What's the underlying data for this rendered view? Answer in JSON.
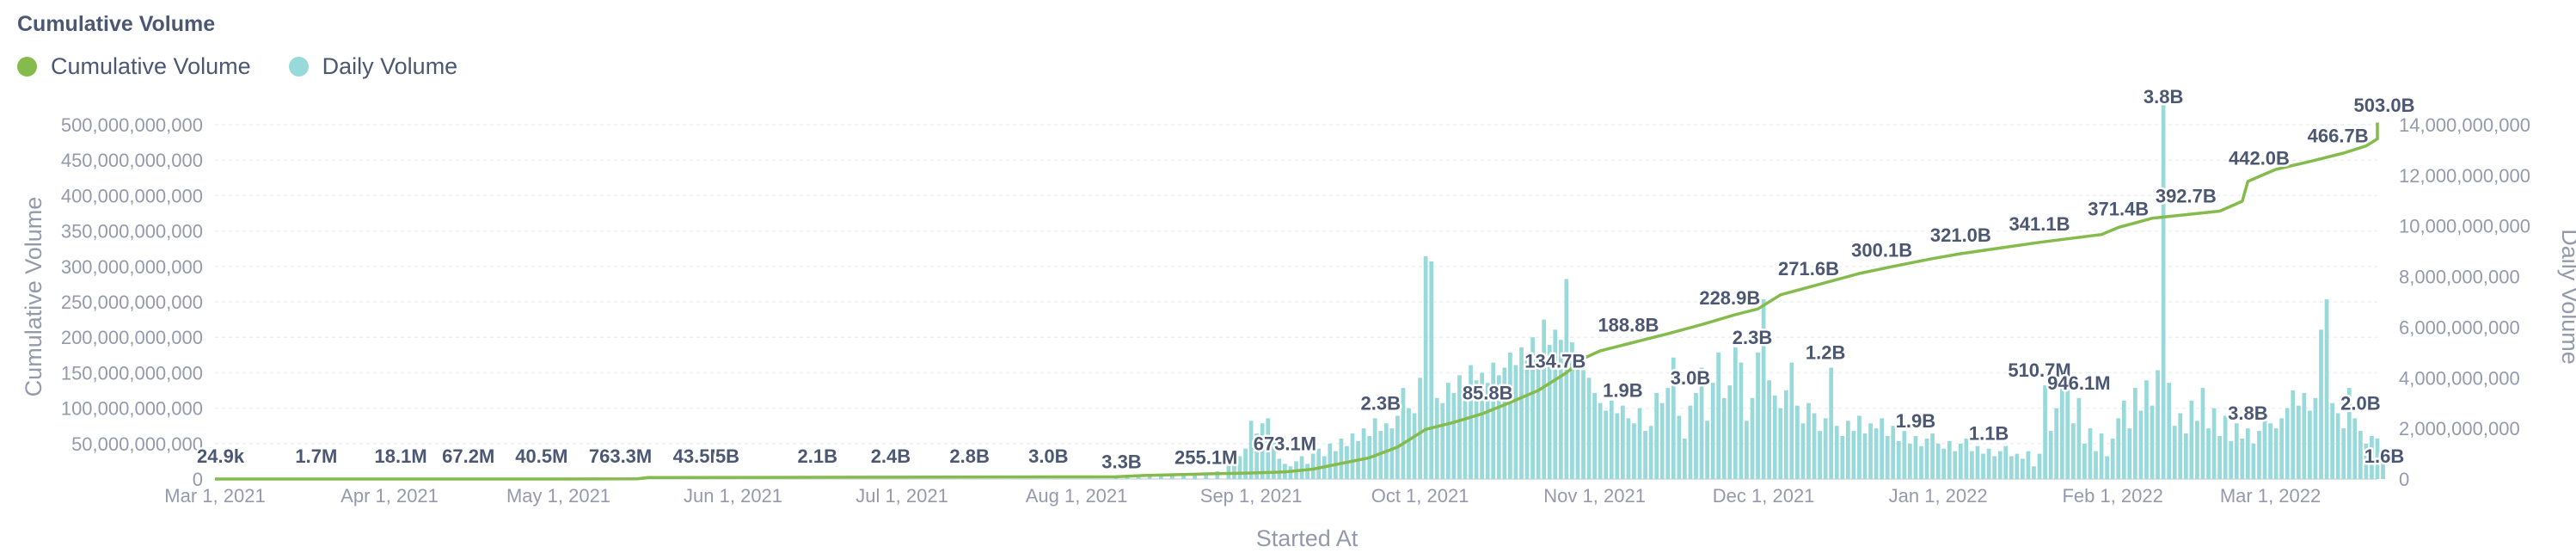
{
  "chart_data": {
    "type": "bar+line",
    "title": "Cumulative Volume",
    "xlabel": "Started At",
    "ylabel_left": "Cumulative Volume",
    "ylabel_right": "Daily Volume",
    "colors": {
      "cumulative": "#84bb4c",
      "daily": "#98d9d9",
      "text": "#4c5773",
      "muted": "#949aab",
      "grid": "#eceff3"
    },
    "legend": [
      {
        "name": "Cumulative Volume",
        "color": "#84bb4c"
      },
      {
        "name": "Daily Volume",
        "color": "#98d9d9"
      }
    ],
    "x_range_days": [
      0,
      384
    ],
    "x_ticks": [
      {
        "day": 0,
        "label": "Mar 1, 2021"
      },
      {
        "day": 31,
        "label": "Apr 1, 2021"
      },
      {
        "day": 61,
        "label": "May 1, 2021"
      },
      {
        "day": 92,
        "label": "Jun 1, 2021"
      },
      {
        "day": 122,
        "label": "Jul 1, 2021"
      },
      {
        "day": 153,
        "label": "Aug 1, 2021"
      },
      {
        "day": 184,
        "label": "Sep 1, 2021"
      },
      {
        "day": 214,
        "label": "Oct 1, 2021"
      },
      {
        "day": 245,
        "label": "Nov 1, 2021"
      },
      {
        "day": 275,
        "label": "Dec 1, 2021"
      },
      {
        "day": 306,
        "label": "Jan 1, 2022"
      },
      {
        "day": 337,
        "label": "Feb 1, 2022"
      },
      {
        "day": 365,
        "label": "Mar 1, 2022"
      }
    ],
    "y_left": {
      "ylim": [
        0,
        500000000000
      ],
      "ticks": [
        {
          "value": 0,
          "label": "0"
        },
        {
          "value": 50000000000,
          "label": "50,000,000,000"
        },
        {
          "value": 100000000000,
          "label": "100,000,000,000"
        },
        {
          "value": 150000000000,
          "label": "150,000,000,000"
        },
        {
          "value": 200000000000,
          "label": "200,000,000,000"
        },
        {
          "value": 250000000000,
          "label": "250,000,000,000"
        },
        {
          "value": 300000000000,
          "label": "300,000,000,000"
        },
        {
          "value": 350000000000,
          "label": "350,000,000,000"
        },
        {
          "value": 400000000000,
          "label": "400,000,000,000"
        },
        {
          "value": 450000000000,
          "label": "450,000,000,000"
        },
        {
          "value": 500000000000,
          "label": "500,000,000,000"
        }
      ]
    },
    "y_right": {
      "ylim": [
        0,
        14000000000
      ],
      "ticks": [
        {
          "value": 0,
          "label": "0"
        },
        {
          "value": 2000000000,
          "label": "2,000,000,000"
        },
        {
          "value": 4000000000,
          "label": "4,000,000,000"
        },
        {
          "value": 6000000000,
          "label": "6,000,000,000"
        },
        {
          "value": 8000000000,
          "label": "8,000,000,000"
        },
        {
          "value": 10000000000,
          "label": "10,000,000,000"
        },
        {
          "value": 12000000000,
          "label": "12,000,000,000"
        },
        {
          "value": 14000000000,
          "label": "14,000,000,000"
        }
      ]
    },
    "cumulative_series": {
      "name": "Cumulative Volume",
      "points": [
        [
          0,
          2e-05
        ],
        [
          30,
          0.0017
        ],
        [
          60,
          0.0181
        ],
        [
          75,
          0.3
        ],
        [
          77,
          2.1
        ],
        [
          120,
          2.5
        ],
        [
          150,
          3.0
        ],
        [
          160,
          3.2
        ],
        [
          165,
          5.0
        ],
        [
          175,
          7.0
        ],
        [
          184,
          8.5
        ],
        [
          190,
          10.0
        ],
        [
          195,
          14.0
        ],
        [
          200,
          22.0
        ],
        [
          205,
          30.0
        ],
        [
          210,
          45.0
        ],
        [
          215,
          70.0
        ],
        [
          220,
          80.0
        ],
        [
          225,
          92.0
        ],
        [
          230,
          108.0
        ],
        [
          235,
          125.0
        ],
        [
          240,
          150.0
        ],
        [
          243,
          170.0
        ],
        [
          246,
          181.0
        ],
        [
          252,
          193.0
        ],
        [
          258,
          205.0
        ],
        [
          264,
          218.0
        ],
        [
          270,
          232.0
        ],
        [
          274,
          240.0
        ],
        [
          278,
          260.0
        ],
        [
          285,
          275.0
        ],
        [
          292,
          290.0
        ],
        [
          298,
          300.0
        ],
        [
          305,
          311.0
        ],
        [
          310,
          318.0
        ],
        [
          317,
          326.0
        ],
        [
          324,
          334.0
        ],
        [
          330,
          340.0
        ],
        [
          335,
          345.0
        ],
        [
          338,
          355.0
        ],
        [
          344,
          368.0
        ],
        [
          350,
          373.0
        ],
        [
          356,
          378.0
        ],
        [
          360,
          392.0
        ],
        [
          361,
          420.0
        ],
        [
          366,
          437.0
        ],
        [
          372,
          448.0
        ],
        [
          378,
          460.0
        ],
        [
          382,
          470.0
        ],
        [
          384,
          480.0
        ],
        [
          386,
          492.0
        ],
        [
          390,
          500.0
        ],
        [
          392,
          503.0
        ]
      ]
    },
    "daily_series": {
      "name": "Daily Volume",
      "bars": [
        [
          160,
          0.05
        ],
        [
          162,
          0.08
        ],
        [
          164,
          0.07
        ],
        [
          166,
          0.1
        ],
        [
          168,
          0.12
        ],
        [
          170,
          0.15
        ],
        [
          172,
          0.18
        ],
        [
          174,
          0.22
        ],
        [
          176,
          0.25
        ],
        [
          178,
          0.3
        ],
        [
          180,
          0.55
        ],
        [
          181,
          1.1
        ],
        [
          182,
          0.9
        ],
        [
          183,
          1.2
        ],
        [
          184,
          2.3
        ],
        [
          185,
          1.8
        ],
        [
          186,
          2.2
        ],
        [
          187,
          2.4
        ],
        [
          188,
          1.6
        ],
        [
          189,
          0.8
        ],
        [
          190,
          0.6
        ],
        [
          191,
          0.5
        ],
        [
          192,
          0.7
        ],
        [
          193,
          0.9
        ],
        [
          194,
          0.6
        ],
        [
          195,
          1.0
        ],
        [
          196,
          1.2
        ],
        [
          197,
          0.9
        ],
        [
          198,
          1.4
        ],
        [
          199,
          1.1
        ],
        [
          200,
          1.6
        ],
        [
          201,
          1.3
        ],
        [
          202,
          1.8
        ],
        [
          203,
          1.5
        ],
        [
          204,
          2.0
        ],
        [
          205,
          1.7
        ],
        [
          206,
          2.4
        ],
        [
          207,
          1.9
        ],
        [
          208,
          2.2
        ],
        [
          209,
          2.0
        ],
        [
          210,
          2.5
        ],
        [
          211,
          3.6
        ],
        [
          212,
          2.8
        ],
        [
          213,
          2.6
        ],
        [
          214,
          4.0
        ],
        [
          215,
          8.8
        ],
        [
          216,
          8.6
        ],
        [
          217,
          3.2
        ],
        [
          218,
          3.0
        ],
        [
          219,
          3.8
        ],
        [
          220,
          3.4
        ],
        [
          221,
          4.1
        ],
        [
          222,
          3.6
        ],
        [
          223,
          4.5
        ],
        [
          224,
          3.9
        ],
        [
          225,
          4.2
        ],
        [
          226,
          3.8
        ],
        [
          227,
          4.6
        ],
        [
          228,
          4.1
        ],
        [
          229,
          4.4
        ],
        [
          230,
          5.0
        ],
        [
          231,
          4.5
        ],
        [
          232,
          5.2
        ],
        [
          233,
          4.7
        ],
        [
          234,
          5.6
        ],
        [
          235,
          5.0
        ],
        [
          236,
          6.3
        ],
        [
          237,
          5.3
        ],
        [
          238,
          5.9
        ],
        [
          239,
          5.5
        ],
        [
          240,
          7.9
        ],
        [
          241,
          5.4
        ],
        [
          242,
          4.8
        ],
        [
          243,
          4.3
        ],
        [
          244,
          4.0
        ],
        [
          245,
          3.4
        ],
        [
          246,
          3.0
        ],
        [
          247,
          2.7
        ],
        [
          248,
          3.1
        ],
        [
          249,
          2.6
        ],
        [
          250,
          2.9
        ],
        [
          251,
          2.4
        ],
        [
          252,
          2.2
        ],
        [
          253,
          2.8
        ],
        [
          254,
          1.9
        ],
        [
          255,
          2.1
        ],
        [
          256,
          3.4
        ],
        [
          257,
          3.0
        ],
        [
          258,
          3.6
        ],
        [
          259,
          4.8
        ],
        [
          260,
          2.5
        ],
        [
          261,
          1.6
        ],
        [
          262,
          2.9
        ],
        [
          263,
          3.4
        ],
        [
          264,
          4.4
        ],
        [
          265,
          2.3
        ],
        [
          266,
          3.8
        ],
        [
          267,
          5.0
        ],
        [
          268,
          3.2
        ],
        [
          269,
          3.7
        ],
        [
          270,
          5.2
        ],
        [
          271,
          4.6
        ],
        [
          272,
          2.3
        ],
        [
          273,
          3.2
        ],
        [
          274,
          5.0
        ],
        [
          275,
          7.1
        ],
        [
          276,
          3.9
        ],
        [
          277,
          3.3
        ],
        [
          278,
          2.8
        ],
        [
          279,
          3.5
        ],
        [
          280,
          4.6
        ],
        [
          281,
          2.9
        ],
        [
          282,
          2.2
        ],
        [
          283,
          3.0
        ],
        [
          284,
          2.6
        ],
        [
          285,
          1.9
        ],
        [
          286,
          2.4
        ],
        [
          287,
          4.4
        ],
        [
          288,
          2.1
        ],
        [
          289,
          1.7
        ],
        [
          290,
          2.3
        ],
        [
          291,
          1.9
        ],
        [
          292,
          2.5
        ],
        [
          293,
          1.8
        ],
        [
          294,
          2.2
        ],
        [
          295,
          2.0
        ],
        [
          296,
          2.4
        ],
        [
          297,
          1.7
        ],
        [
          298,
          2.1
        ],
        [
          299,
          1.5
        ],
        [
          300,
          1.9
        ],
        [
          301,
          1.4
        ],
        [
          302,
          1.7
        ],
        [
          303,
          1.3
        ],
        [
          304,
          1.6
        ],
        [
          305,
          1.8
        ],
        [
          306,
          1.4
        ],
        [
          307,
          1.2
        ],
        [
          308,
          1.5
        ],
        [
          309,
          1.1
        ],
        [
          310,
          1.4
        ],
        [
          311,
          1.6
        ],
        [
          312,
          1.1
        ],
        [
          313,
          1.3
        ],
        [
          314,
          1.0
        ],
        [
          315,
          1.2
        ],
        [
          316,
          0.9
        ],
        [
          317,
          1.1
        ],
        [
          318,
          1.3
        ],
        [
          319,
          0.9
        ],
        [
          320,
          1.0
        ],
        [
          321,
          0.8
        ],
        [
          322,
          1.1
        ],
        [
          323,
          0.5
        ],
        [
          324,
          1.0
        ],
        [
          325,
          3.7
        ],
        [
          326,
          1.9
        ],
        [
          327,
          2.8
        ],
        [
          328,
          4.5
        ],
        [
          329,
          3.8
        ],
        [
          330,
          2.2
        ],
        [
          331,
          3.2
        ],
        [
          332,
          1.4
        ],
        [
          333,
          2.0
        ],
        [
          334,
          1.1
        ],
        [
          335,
          1.8
        ],
        [
          336,
          0.9
        ],
        [
          337,
          1.6
        ],
        [
          338,
          2.4
        ],
        [
          339,
          3.1
        ],
        [
          340,
          2.0
        ],
        [
          341,
          3.6
        ],
        [
          342,
          2.7
        ],
        [
          343,
          3.9
        ],
        [
          344,
          2.9
        ],
        [
          345,
          4.3
        ],
        [
          346,
          14.8
        ],
        [
          347,
          3.8
        ],
        [
          348,
          2.1
        ],
        [
          349,
          2.6
        ],
        [
          350,
          1.8
        ],
        [
          351,
          3.1
        ],
        [
          352,
          2.3
        ],
        [
          353,
          3.6
        ],
        [
          354,
          2.0
        ],
        [
          355,
          2.8
        ],
        [
          356,
          1.7
        ],
        [
          357,
          2.5
        ],
        [
          358,
          1.5
        ],
        [
          359,
          2.2
        ],
        [
          360,
          1.6
        ],
        [
          361,
          2.0
        ],
        [
          362,
          1.4
        ],
        [
          363,
          1.9
        ],
        [
          364,
          2.6
        ],
        [
          365,
          2.2
        ],
        [
          366,
          2.0
        ],
        [
          367,
          2.4
        ],
        [
          368,
          2.8
        ],
        [
          369,
          3.5
        ],
        [
          370,
          2.9
        ],
        [
          371,
          3.4
        ],
        [
          372,
          2.7
        ],
        [
          373,
          3.2
        ],
        [
          374,
          5.9
        ],
        [
          375,
          7.1
        ],
        [
          376,
          3.0
        ],
        [
          377,
          2.6
        ],
        [
          378,
          2.0
        ],
        [
          379,
          3.6
        ],
        [
          380,
          2.4
        ],
        [
          381,
          1.9
        ],
        [
          382,
          1.4
        ],
        [
          383,
          1.7
        ],
        [
          384,
          1.6
        ],
        [
          385,
          1.2
        ]
      ]
    },
    "data_labels": [
      {
        "day": 1,
        "label": "24.9k"
      },
      {
        "day": 18,
        "label": "1.7M"
      },
      {
        "day": 33,
        "label": "18.1M"
      },
      {
        "day": 45,
        "label": "67.2M"
      },
      {
        "day": 58,
        "label": "40.5M"
      },
      {
        "day": 72,
        "label": "763.3M"
      },
      {
        "day": 86,
        "label": "43.5M"
      },
      {
        "day": 91,
        "label": "5B"
      },
      {
        "day": 107,
        "label": "2.1B"
      },
      {
        "day": 120,
        "label": "2.4B"
      },
      {
        "day": 134,
        "label": "2.8B"
      },
      {
        "day": 148,
        "label": "3.0B"
      },
      {
        "day": 161,
        "label": "3.3B"
      },
      {
        "day": 176,
        "label": "255.1M"
      },
      {
        "day": 190,
        "label": "673.1M"
      },
      {
        "day": 207,
        "label": "2.3B"
      },
      {
        "day": 226,
        "label": "85.8B"
      },
      {
        "day": 238,
        "label": "134.7B"
      },
      {
        "day": 251,
        "label": "188.8B"
      },
      {
        "day": 250,
        "label": "1.9B"
      },
      {
        "day": 262,
        "label": "3.0B"
      },
      {
        "day": 269,
        "label": "228.9B"
      },
      {
        "day": 273,
        "label": "2.3B"
      },
      {
        "day": 283,
        "label": "271.6B"
      },
      {
        "day": 286,
        "label": "1.2B"
      },
      {
        "day": 296,
        "label": "300.1B"
      },
      {
        "day": 302,
        "label": "1.9B"
      },
      {
        "day": 310,
        "label": "321.0B"
      },
      {
        "day": 315,
        "label": "1.1B"
      },
      {
        "day": 324,
        "label": "341.1B"
      },
      {
        "day": 324,
        "label": "510.7M"
      },
      {
        "day": 331,
        "label": "946.1M"
      },
      {
        "day": 338,
        "label": "371.4B"
      },
      {
        "day": 350,
        "label": "392.7B"
      },
      {
        "day": 346,
        "label": "3.8B"
      },
      {
        "day": 361,
        "label": "3.8B"
      },
      {
        "day": 363,
        "label": "442.0B"
      },
      {
        "day": 377,
        "label": "466.7B"
      },
      {
        "day": 381,
        "label": "2.0B"
      },
      {
        "day": 388,
        "label": "1.6B"
      },
      {
        "day": 391,
        "label": "503.0B"
      }
    ]
  }
}
